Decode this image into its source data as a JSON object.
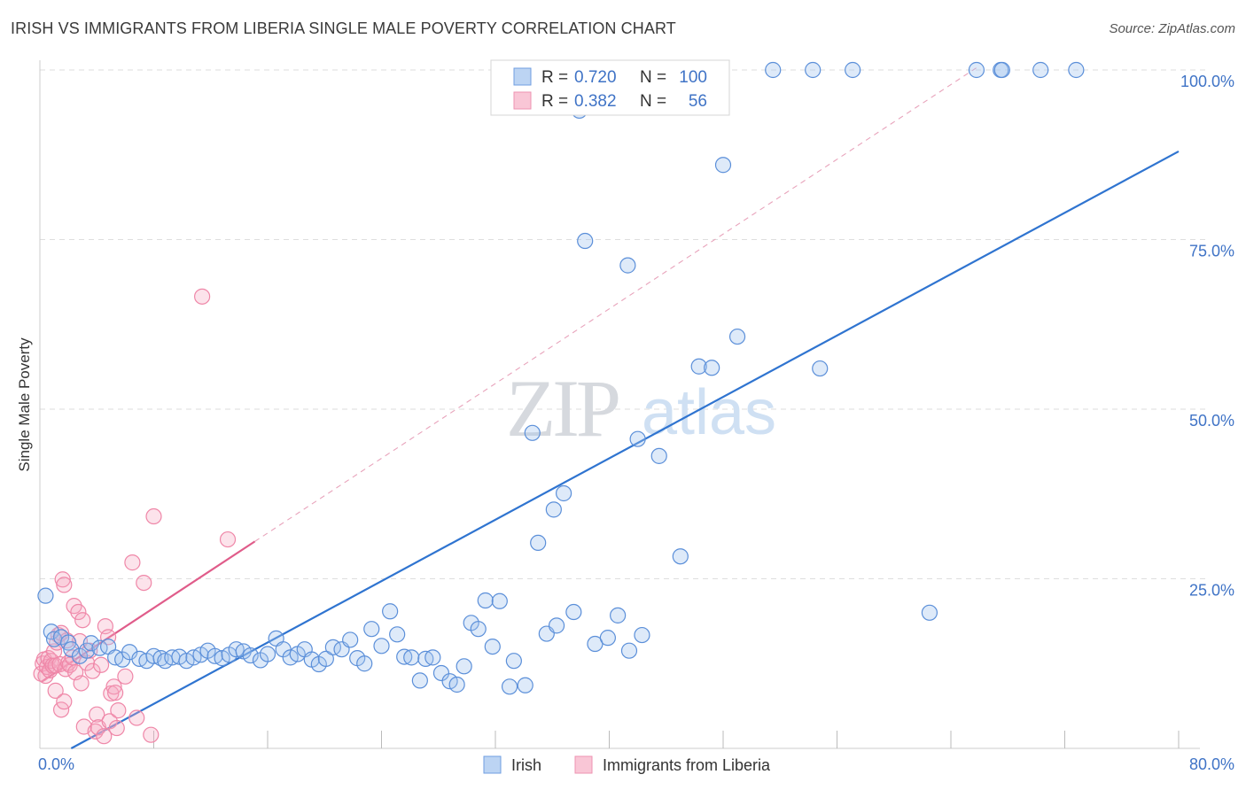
{
  "chart_data": {
    "type": "scatter",
    "title": "IRISH VS IMMIGRANTS FROM LIBERIA SINGLE MALE POVERTY CORRELATION CHART",
    "source": "Source: ZipAtlas.com",
    "xlabel": "",
    "ylabel": "Single Male Poverty",
    "xlim": [
      0,
      80
    ],
    "ylim": [
      0,
      100
    ],
    "x_tick_labels": [
      "0.0%",
      "80.0%"
    ],
    "y_tick_labels": [
      "25.0%",
      "50.0%",
      "75.0%",
      "100.0%"
    ],
    "y_ticks": [
      25,
      50,
      75,
      100
    ],
    "watermark": {
      "zip": "ZIP",
      "atlas": "atlas"
    },
    "colors": {
      "irish": "#5b8fd9",
      "irish_line": "#2f74d0",
      "liberia": "#ef87a8",
      "liberia_line": "#e05c8a",
      "axis_text": "#3f73c6"
    },
    "legend": {
      "r_label": "R =",
      "n_label": "N =",
      "entries": [
        {
          "name": "Irish",
          "r": "0.720",
          "n": "100"
        },
        {
          "name": "Immigrants from Liberia",
          "r": "0.382",
          "n": "56"
        }
      ]
    },
    "series": [
      {
        "name": "Irish",
        "trend": {
          "x": [
            2.2,
            80
          ],
          "y": [
            0,
            88
          ]
        },
        "points": [
          [
            0.4,
            22.5
          ],
          [
            0.8,
            17.2
          ],
          [
            1.0,
            16.1
          ],
          [
            1.5,
            16.4
          ],
          [
            2.0,
            15.6
          ],
          [
            2.2,
            14.6
          ],
          [
            2.8,
            13.6
          ],
          [
            3.3,
            14.4
          ],
          [
            3.6,
            15.5
          ],
          [
            4.2,
            14.8
          ],
          [
            4.8,
            15.0
          ],
          [
            5.3,
            13.4
          ],
          [
            5.8,
            13.1
          ],
          [
            6.3,
            14.2
          ],
          [
            7.0,
            13.2
          ],
          [
            7.5,
            12.9
          ],
          [
            8.0,
            13.6
          ],
          [
            8.5,
            13.3
          ],
          [
            8.8,
            12.9
          ],
          [
            9.3,
            13.4
          ],
          [
            9.8,
            13.5
          ],
          [
            10.3,
            12.9
          ],
          [
            10.8,
            13.4
          ],
          [
            11.3,
            13.8
          ],
          [
            11.8,
            14.4
          ],
          [
            12.3,
            13.6
          ],
          [
            12.8,
            13.3
          ],
          [
            13.3,
            13.8
          ],
          [
            13.8,
            14.6
          ],
          [
            14.3,
            14.3
          ],
          [
            14.8,
            13.7
          ],
          [
            15.5,
            13.0
          ],
          [
            16.0,
            13.9
          ],
          [
            16.6,
            16.2
          ],
          [
            17.1,
            14.6
          ],
          [
            17.6,
            13.4
          ],
          [
            18.1,
            13.9
          ],
          [
            18.6,
            14.6
          ],
          [
            19.1,
            13.1
          ],
          [
            19.6,
            12.4
          ],
          [
            20.1,
            13.2
          ],
          [
            20.6,
            14.9
          ],
          [
            21.2,
            14.6
          ],
          [
            21.8,
            16.0
          ],
          [
            22.3,
            13.3
          ],
          [
            22.8,
            12.5
          ],
          [
            23.3,
            17.6
          ],
          [
            24.0,
            15.1
          ],
          [
            24.6,
            20.2
          ],
          [
            25.1,
            16.8
          ],
          [
            25.6,
            13.5
          ],
          [
            26.1,
            13.4
          ],
          [
            26.7,
            10.0
          ],
          [
            27.1,
            13.2
          ],
          [
            27.6,
            13.4
          ],
          [
            28.2,
            11.1
          ],
          [
            28.8,
            9.9
          ],
          [
            29.3,
            9.4
          ],
          [
            29.8,
            12.1
          ],
          [
            30.3,
            18.5
          ],
          [
            30.8,
            17.6
          ],
          [
            31.3,
            21.8
          ],
          [
            31.8,
            15.0
          ],
          [
            32.3,
            21.7
          ],
          [
            33.0,
            9.1
          ],
          [
            33.3,
            12.9
          ],
          [
            34.1,
            9.3
          ],
          [
            34.6,
            46.5
          ],
          [
            35.0,
            30.3
          ],
          [
            35.6,
            16.9
          ],
          [
            36.1,
            35.2
          ],
          [
            36.3,
            18.1
          ],
          [
            36.8,
            37.6
          ],
          [
            37.5,
            20.1
          ],
          [
            37.9,
            94.0
          ],
          [
            38.3,
            74.8
          ],
          [
            39.0,
            15.4
          ],
          [
            39.9,
            16.3
          ],
          [
            40.6,
            19.6
          ],
          [
            41.3,
            71.2
          ],
          [
            41.4,
            14.4
          ],
          [
            42.0,
            45.6
          ],
          [
            42.3,
            16.7
          ],
          [
            42.7,
            100.0
          ],
          [
            43.5,
            43.1
          ],
          [
            45.0,
            28.3
          ],
          [
            46.3,
            56.3
          ],
          [
            47.2,
            56.1
          ],
          [
            48.0,
            86.0
          ],
          [
            49.0,
            60.7
          ],
          [
            51.5,
            100.0
          ],
          [
            54.3,
            100.0
          ],
          [
            54.8,
            56.0
          ],
          [
            57.1,
            100.0
          ],
          [
            62.5,
            20.0
          ],
          [
            65.8,
            100.0
          ],
          [
            67.5,
            100.0
          ],
          [
            67.6,
            100.0
          ],
          [
            70.3,
            100.0
          ],
          [
            72.8,
            100.0
          ]
        ]
      },
      {
        "name": "Immigrants from Liberia",
        "trend": {
          "x": [
            0.1,
            15.1
          ],
          "y": [
            9.8,
            30.5
          ]
        },
        "trend_ext": {
          "x": [
            15.1,
            66
          ],
          "y": [
            30.5,
            100.6
          ]
        },
        "points": [
          [
            0.1,
            11.0
          ],
          [
            0.2,
            12.5
          ],
          [
            0.3,
            13.1
          ],
          [
            0.4,
            10.7
          ],
          [
            0.5,
            12.0
          ],
          [
            0.6,
            13.3
          ],
          [
            0.7,
            11.5
          ],
          [
            0.8,
            12.9
          ],
          [
            0.9,
            12.2
          ],
          [
            1.0,
            14.3
          ],
          [
            1.1,
            12.2
          ],
          [
            1.1,
            8.5
          ],
          [
            1.2,
            15.6
          ],
          [
            1.3,
            16.7
          ],
          [
            1.4,
            12.4
          ],
          [
            1.5,
            5.7
          ],
          [
            1.5,
            17.0
          ],
          [
            1.6,
            24.9
          ],
          [
            1.7,
            24.1
          ],
          [
            1.7,
            6.9
          ],
          [
            1.8,
            11.7
          ],
          [
            1.9,
            15.9
          ],
          [
            2.0,
            12.6
          ],
          [
            2.1,
            12.3
          ],
          [
            2.3,
            13.4
          ],
          [
            2.4,
            21.0
          ],
          [
            2.5,
            11.2
          ],
          [
            2.7,
            20.1
          ],
          [
            2.8,
            15.8
          ],
          [
            2.9,
            9.6
          ],
          [
            3.0,
            18.9
          ],
          [
            3.1,
            3.2
          ],
          [
            3.3,
            12.6
          ],
          [
            3.5,
            14.4
          ],
          [
            3.7,
            11.4
          ],
          [
            3.9,
            2.5
          ],
          [
            4.0,
            5.0
          ],
          [
            4.1,
            3.1
          ],
          [
            4.3,
            12.3
          ],
          [
            4.5,
            1.8
          ],
          [
            4.6,
            18.0
          ],
          [
            4.8,
            16.4
          ],
          [
            4.9,
            4.0
          ],
          [
            5.0,
            8.1
          ],
          [
            5.2,
            9.1
          ],
          [
            5.3,
            8.2
          ],
          [
            5.4,
            3.0
          ],
          [
            5.5,
            5.6
          ],
          [
            6.0,
            10.6
          ],
          [
            6.5,
            27.4
          ],
          [
            6.8,
            4.5
          ],
          [
            7.3,
            24.4
          ],
          [
            7.8,
            2.0
          ],
          [
            8.0,
            34.2
          ],
          [
            11.4,
            66.6
          ],
          [
            13.2,
            30.8
          ]
        ]
      }
    ]
  }
}
